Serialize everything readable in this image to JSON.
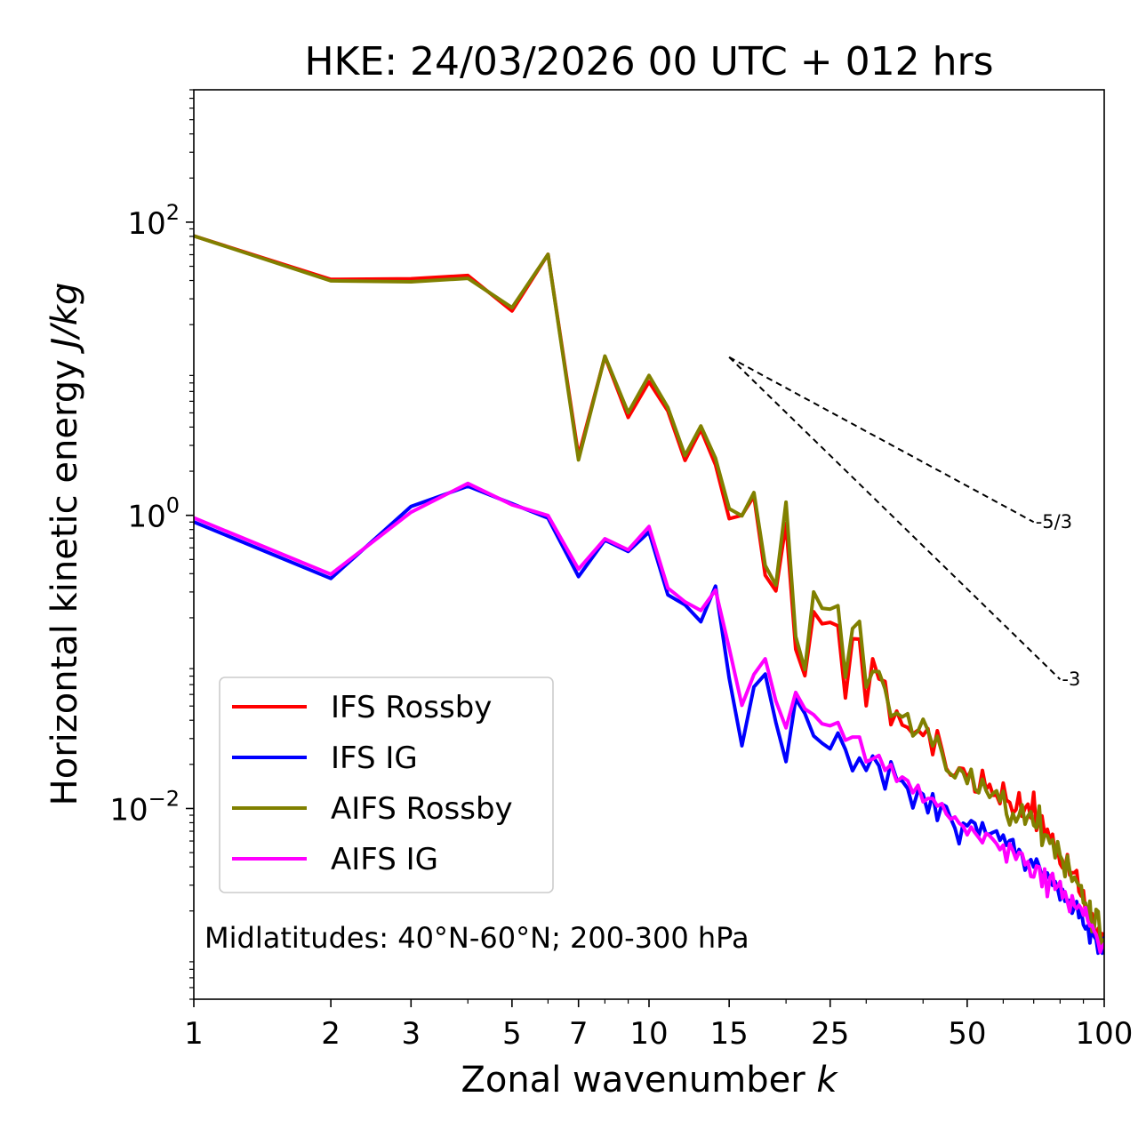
{
  "chart_data": {
    "type": "line",
    "title": "HKE: 24/03/2026 00 UTC + 012 hrs",
    "xlabel": "Zonal wavenumber k",
    "ylabel": "Horizontal kinetic energy J/kg",
    "xscale": "log",
    "yscale": "log",
    "xlim": [
      1,
      100
    ],
    "ylim": [
      0.0005,
      800
    ],
    "x_ticks": [
      {
        "value": 1,
        "label": "1"
      },
      {
        "value": 2,
        "label": "2"
      },
      {
        "value": 3,
        "label": "3"
      },
      {
        "value": 5,
        "label": "5"
      },
      {
        "value": 7,
        "label": "7"
      },
      {
        "value": 10,
        "label": "10"
      },
      {
        "value": 15,
        "label": "15"
      },
      {
        "value": 25,
        "label": "25"
      },
      {
        "value": 50,
        "label": "50"
      },
      {
        "value": 100,
        "label": "100"
      }
    ],
    "y_ticks": [
      {
        "value": 0.01,
        "mantissa": "10",
        "exponent": "−2"
      },
      {
        "value": 1,
        "mantissa": "10",
        "exponent": "0"
      },
      {
        "value": 100,
        "mantissa": "10",
        "exponent": "2"
      }
    ],
    "legend_position": "lower-left",
    "annotation": "Midlatitudes: 40°N-60°N; 200-300 hPa",
    "x": [
      1,
      2,
      3,
      4,
      5,
      6,
      7,
      8,
      9,
      10,
      11,
      12,
      13,
      14,
      15,
      16,
      17,
      18,
      19,
      20,
      21,
      22,
      23,
      24,
      25,
      26,
      27,
      28,
      29,
      30,
      31,
      32,
      33,
      34,
      35,
      36,
      37,
      38,
      39,
      40,
      41,
      42,
      43,
      44,
      45,
      46,
      47,
      48,
      49,
      50,
      51,
      52,
      53,
      54,
      55,
      56,
      57,
      58,
      59,
      60,
      61,
      62,
      63,
      64,
      65,
      66,
      67,
      68,
      69,
      70,
      71,
      72,
      73,
      74,
      75,
      76,
      77,
      78,
      79,
      80,
      81,
      82,
      83,
      84,
      85,
      86,
      87,
      88,
      89,
      90,
      91,
      92,
      93,
      94,
      95,
      96,
      97,
      98,
      99,
      100
    ],
    "series": [
      {
        "name": "IFS Rossby",
        "color": "#ff0000",
        "values": [
          80.6,
          40.7,
          41.1,
          43.3,
          24.8,
          60.3,
          2.54,
          12.1,
          4.66,
          8.14,
          5.15,
          2.37,
          3.85,
          2.21,
          0.95,
          1.0,
          1.35,
          0.39,
          0.305,
          0.88,
          0.122,
          0.0805,
          0.22,
          0.182,
          0.186,
          0.176,
          0.0568,
          0.144,
          0.143,
          0.0502,
          0.105,
          0.0765,
          0.0736,
          0.0373,
          0.0462,
          0.0371,
          0.0357,
          0.0323,
          0.0342,
          0.0315,
          0.0351,
          0.0233,
          0.0339,
          0.0255,
          0.0188,
          0.0169,
          0.0168,
          0.0189,
          0.0187,
          0.0162,
          0.0182,
          0.013,
          0.0129,
          0.0182,
          0.0135,
          0.0146,
          0.0123,
          0.0123,
          0.0108,
          0.0149,
          0.0114,
          0.011,
          0.00928,
          0.00981,
          0.0128,
          0.00885,
          0.0101,
          0.0107,
          0.00863,
          0.0129,
          0.00709,
          0.00862,
          0.00889,
          0.00669,
          0.00722,
          0.00616,
          0.00668,
          0.00487,
          0.00528,
          0.0042,
          0.00394,
          0.00393,
          0.00484,
          0.00352,
          0.00364,
          0.00365,
          0.00377,
          0.00271,
          0.00253,
          0.00275,
          0.00194,
          0.00177,
          0.00179,
          0.00192,
          0.00153,
          0.00132,
          0.00152,
          0.00111,
          0.0014,
          0.00111
        ]
      },
      {
        "name": "IFS IG",
        "color": "#0000ff",
        "values": [
          0.902,
          0.371,
          1.15,
          1.58,
          1.2,
          0.957,
          0.382,
          0.677,
          0.567,
          0.77,
          0.287,
          0.245,
          0.188,
          0.329,
          0.0774,
          0.0268,
          0.0675,
          0.0826,
          0.0386,
          0.0209,
          0.0559,
          0.0445,
          0.0313,
          0.0279,
          0.0255,
          0.0327,
          0.0253,
          0.0181,
          0.0221,
          0.0182,
          0.0228,
          0.0196,
          0.0136,
          0.0208,
          0.0158,
          0.0154,
          0.0137,
          0.0101,
          0.0132,
          0.0125,
          0.00935,
          0.0126,
          0.00829,
          0.0107,
          0.0103,
          0.00856,
          0.00734,
          0.00575,
          0.00794,
          0.00761,
          0.00825,
          0.00792,
          0.00652,
          0.00799,
          0.00668,
          0.00669,
          0.00688,
          0.00703,
          0.00606,
          0.00658,
          0.00561,
          0.00605,
          0.00614,
          0.00456,
          0.00525,
          0.00482,
          0.0038,
          0.00426,
          0.00448,
          0.00399,
          0.00452,
          0.00401,
          0.00343,
          0.00365,
          0.00363,
          0.00323,
          0.00299,
          0.00317,
          0.00285,
          0.00238,
          0.00281,
          0.00233,
          0.00237,
          0.00236,
          0.00193,
          0.00214,
          0.00232,
          0.0018,
          0.00202,
          0.00161,
          0.00151,
          0.00159,
          0.00121,
          0.00167,
          0.00134,
          0.00128,
          0.00103,
          0.00114,
          0.00103,
          0.00131
        ]
      },
      {
        "name": "AIFS Rossby",
        "color": "#808000",
        "values": [
          80.6,
          39.8,
          39.2,
          41.4,
          26.1,
          60.3,
          2.39,
          12.2,
          5.02,
          8.99,
          5.44,
          2.56,
          4.07,
          2.45,
          1.11,
          0.991,
          1.43,
          0.455,
          0.334,
          1.23,
          0.149,
          0.0888,
          0.3,
          0.232,
          0.229,
          0.242,
          0.0786,
          0.169,
          0.189,
          0.0673,
          0.0862,
          0.0858,
          0.0654,
          0.0425,
          0.0447,
          0.0421,
          0.0443,
          0.0313,
          0.0338,
          0.0406,
          0.0341,
          0.0267,
          0.0311,
          0.0242,
          0.0183,
          0.0172,
          0.0162,
          0.0188,
          0.0176,
          0.0148,
          0.0185,
          0.0136,
          0.0128,
          0.0158,
          0.0133,
          0.0119,
          0.0127,
          0.0132,
          0.0112,
          0.0131,
          0.00913,
          0.00773,
          0.00925,
          0.0081,
          0.00897,
          0.0106,
          0.00782,
          0.00889,
          0.00951,
          0.00768,
          0.00737,
          0.0104,
          0.0056,
          0.00662,
          0.00653,
          0.00579,
          0.00612,
          0.00461,
          0.00593,
          0.00477,
          0.00442,
          0.00343,
          0.00474,
          0.00377,
          0.00319,
          0.0034,
          0.00317,
          0.00298,
          0.00298,
          0.00227,
          0.00226,
          0.00175,
          0.00233,
          0.00145,
          0.0015,
          0.00205,
          0.00198,
          0.00134,
          0.00112,
          0.00128
        ]
      },
      {
        "name": "AIFS IG",
        "color": "#ff00ff",
        "values": [
          0.962,
          0.396,
          1.05,
          1.65,
          1.18,
          0.997,
          0.429,
          0.692,
          0.582,
          0.839,
          0.319,
          0.257,
          0.224,
          0.309,
          0.124,
          0.0506,
          0.0821,
          0.105,
          0.0541,
          0.0355,
          0.0619,
          0.0478,
          0.0436,
          0.0378,
          0.0367,
          0.0386,
          0.0292,
          0.0307,
          0.0307,
          0.0208,
          0.0218,
          0.023,
          0.0182,
          0.0199,
          0.0153,
          0.0164,
          0.0155,
          0.0128,
          0.0144,
          0.0111,
          0.0117,
          0.0117,
          0.0104,
          0.0108,
          0.00918,
          0.00845,
          0.00876,
          0.00795,
          0.00755,
          0.00661,
          0.00747,
          0.00684,
          0.00634,
          0.00584,
          0.00676,
          0.00652,
          0.00614,
          0.00575,
          0.00524,
          0.00562,
          0.00432,
          0.00574,
          0.00516,
          0.0045,
          0.00502,
          0.00493,
          0.00413,
          0.00434,
          0.00344,
          0.00341,
          0.00405,
          0.00399,
          0.00293,
          0.00387,
          0.00251,
          0.00339,
          0.0036,
          0.00281,
          0.00295,
          0.00317,
          0.00245,
          0.00271,
          0.00232,
          0.00198,
          0.00254,
          0.00216,
          0.00208,
          0.00219,
          0.00208,
          0.00187,
          0.00211,
          0.00172,
          0.00158,
          0.0016,
          0.00146,
          0.00138,
          0.00122,
          0.00105,
          0.00115,
          0.00119
        ]
      }
    ],
    "reference_lines": [
      {
        "label": "-5/3",
        "x": [
          15,
          70
        ],
        "y": [
          12.0,
          0.9
        ]
      },
      {
        "label": "-3",
        "x": [
          15,
          80
        ],
        "y": [
          12.0,
          0.076
        ]
      }
    ]
  }
}
